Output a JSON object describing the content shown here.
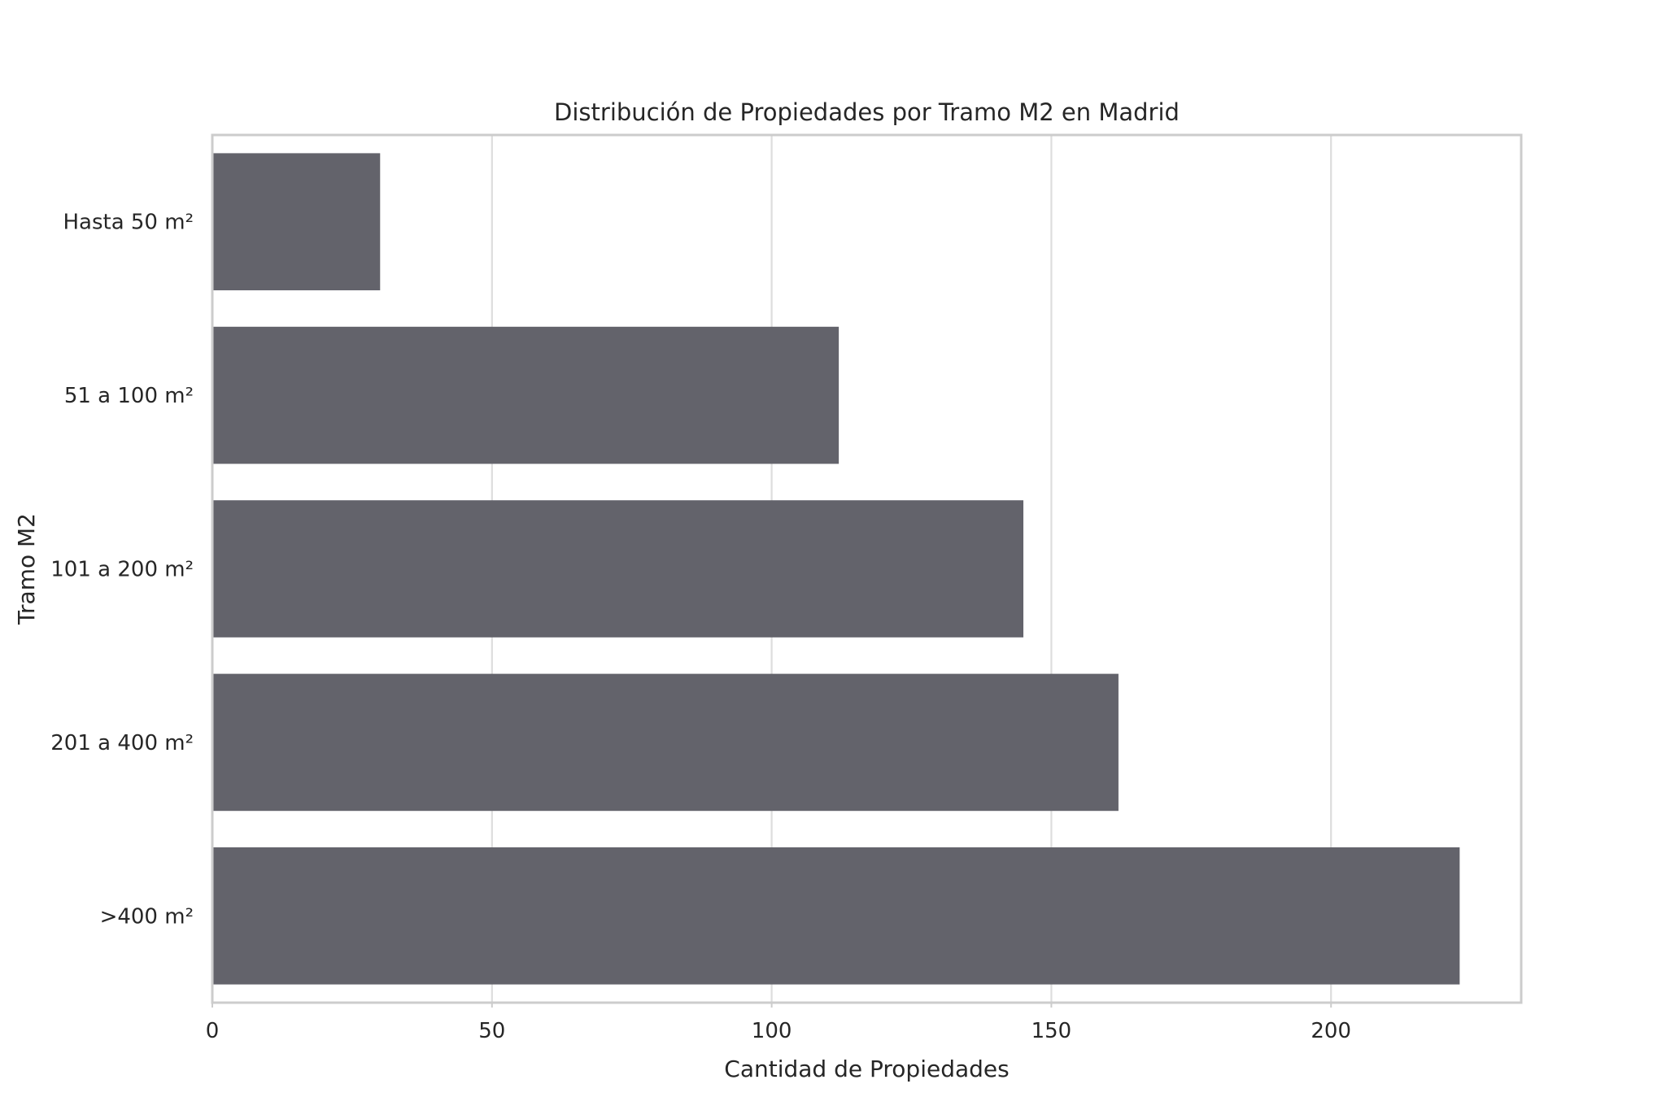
{
  "chart_data": {
    "type": "bar",
    "orientation": "horizontal",
    "title": "Distribución de Propiedades por Tramo M2 en Madrid",
    "xlabel": "Cantidad de Propiedades",
    "ylabel": "Tramo M2",
    "categories": [
      "Hasta 50 m²",
      "51 a 100 m²",
      "101 a 200 m²",
      "201 a 400 m²",
      ">400 m²"
    ],
    "values": [
      30,
      112,
      145,
      162,
      223
    ],
    "xlim": [
      0,
      234
    ],
    "xticks": [
      0,
      50,
      100,
      150,
      200
    ],
    "xtick_labels": [
      "0",
      "50",
      "100",
      "150",
      "200"
    ],
    "grid": true,
    "bar_color": "#63636b"
  }
}
